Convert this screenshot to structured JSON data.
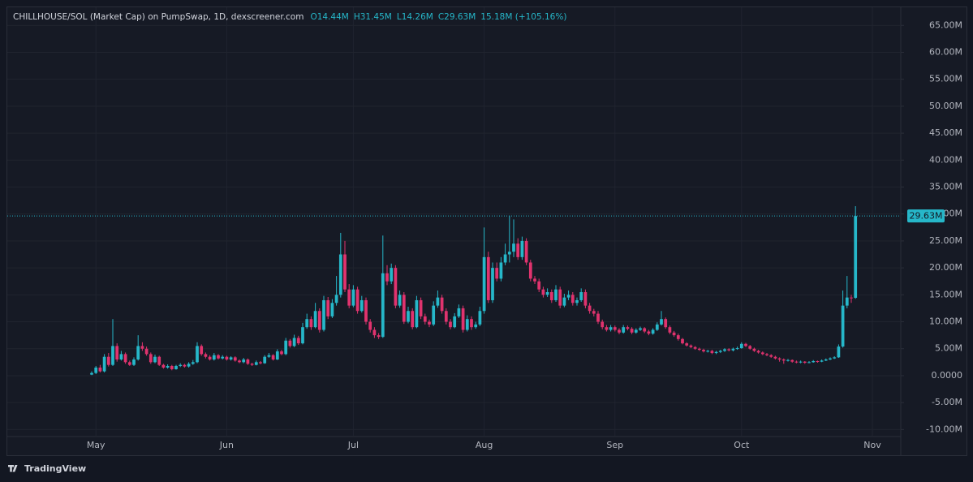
{
  "chart_data": {
    "type": "candlestick",
    "title": "CHILLHOUSE/SOL (Market Cap) on PumpSwap, 1D, dexscreener.com",
    "legend_items": [
      "O14.44M",
      "H31.45M",
      "L14.26M",
      "C29.63M",
      "15.18M (+105.16%)"
    ],
    "last_value_label": "29.63M",
    "footer": "TradingView",
    "up_color": "#26b7c9",
    "down_color": "#e0336e",
    "grid": true,
    "ylim": [
      -11.3,
      67.9
    ],
    "yticks": [
      {
        "value": -10,
        "label": "-10.00M"
      },
      {
        "value": -5,
        "label": "-5.00M"
      },
      {
        "value": 0,
        "label": "0.0000"
      },
      {
        "value": 5,
        "label": "5.00M"
      },
      {
        "value": 10,
        "label": "10.00M"
      },
      {
        "value": 15,
        "label": "15.00M"
      },
      {
        "value": 20,
        "label": "20.00M"
      },
      {
        "value": 25,
        "label": "25.00M"
      },
      {
        "value": 30,
        "label": "30.00M"
      },
      {
        "value": 35,
        "label": "35.00M"
      },
      {
        "value": 40,
        "label": "40.00M"
      },
      {
        "value": 45,
        "label": "45.00M"
      },
      {
        "value": 50,
        "label": "50.00M"
      },
      {
        "value": 55,
        "label": "55.00M"
      },
      {
        "value": 60,
        "label": "60.00M"
      },
      {
        "value": 65,
        "label": "65.00M"
      }
    ],
    "categories": [
      null,
      "May",
      null,
      null,
      null,
      null,
      null,
      null,
      null,
      null,
      null,
      null,
      null,
      null,
      null,
      null,
      null,
      null,
      null,
      null,
      null,
      null,
      null,
      null,
      null,
      null,
      null,
      null,
      null,
      null,
      null,
      null,
      "Jun",
      null,
      null,
      null,
      null,
      null,
      null,
      null,
      null,
      null,
      null,
      null,
      null,
      null,
      null,
      null,
      null,
      null,
      null,
      null,
      null,
      null,
      null,
      null,
      null,
      null,
      null,
      null,
      null,
      null,
      "Jul",
      null,
      null,
      null,
      null,
      null,
      null,
      null,
      null,
      null,
      null,
      null,
      null,
      null,
      null,
      null,
      null,
      null,
      null,
      null,
      null,
      null,
      null,
      null,
      null,
      null,
      null,
      null,
      null,
      null,
      null,
      "Aug",
      null,
      null,
      null,
      null,
      null,
      null,
      null,
      null,
      null,
      null,
      null,
      null,
      null,
      null,
      null,
      null,
      null,
      null,
      null,
      null,
      null,
      null,
      null,
      null,
      null,
      null,
      null,
      null,
      null,
      null,
      "Sep",
      null,
      null,
      null,
      null,
      null,
      null,
      null,
      null,
      null,
      null,
      null,
      null,
      null,
      null,
      null,
      null,
      null,
      null,
      null,
      null,
      null,
      null,
      null,
      null,
      null,
      null,
      null,
      null,
      null,
      "Oct",
      null,
      null,
      null,
      null,
      null,
      null,
      null,
      null,
      null,
      null,
      null,
      null,
      null,
      null,
      null,
      null,
      null,
      null,
      null,
      null,
      null,
      null,
      null,
      null,
      null,
      null,
      null,
      null,
      null,
      null,
      "Nov"
    ],
    "ohlc": [
      [
        0.2,
        0.8,
        0.1,
        0.5
      ],
      [
        0.5,
        1.8,
        0.3,
        1.5
      ],
      [
        1.5,
        2.0,
        0.6,
        0.8
      ],
      [
        0.8,
        4.0,
        0.6,
        3.5
      ],
      [
        3.5,
        4.2,
        1.7,
        2.0
      ],
      [
        2.0,
        10.5,
        1.8,
        5.5
      ],
      [
        5.5,
        6.0,
        2.6,
        3.0
      ],
      [
        3.0,
        4.6,
        2.8,
        4.0
      ],
      [
        4.0,
        4.3,
        2.2,
        2.5
      ],
      [
        2.5,
        2.8,
        1.8,
        2.0
      ],
      [
        2.0,
        3.4,
        1.8,
        3.0
      ],
      [
        3.0,
        7.5,
        2.8,
        5.5
      ],
      [
        5.5,
        6.2,
        4.6,
        5.0
      ],
      [
        5.0,
        5.4,
        3.7,
        4.0
      ],
      [
        4.0,
        4.3,
        2.2,
        2.5
      ],
      [
        2.5,
        3.9,
        2.3,
        3.5
      ],
      [
        3.5,
        3.7,
        1.8,
        2.0
      ],
      [
        2.0,
        2.2,
        1.3,
        1.5
      ],
      [
        1.5,
        2.1,
        1.3,
        1.8
      ],
      [
        1.8,
        2.0,
        1.0,
        1.2
      ],
      [
        1.2,
        2.0,
        1.1,
        1.8
      ],
      [
        1.8,
        2.3,
        1.6,
        2.0
      ],
      [
        2.0,
        2.2,
        1.5,
        1.7
      ],
      [
        1.7,
        2.5,
        1.5,
        2.2
      ],
      [
        2.2,
        2.9,
        2.0,
        2.5
      ],
      [
        2.5,
        6.2,
        2.3,
        5.5
      ],
      [
        5.5,
        5.8,
        3.7,
        4.0
      ],
      [
        4.0,
        4.3,
        3.2,
        3.5
      ],
      [
        3.5,
        3.8,
        2.8,
        3.0
      ],
      [
        3.0,
        4.2,
        2.8,
        3.8
      ],
      [
        3.8,
        4.0,
        3.0,
        3.2
      ],
      [
        3.2,
        3.8,
        3.0,
        3.5
      ],
      [
        3.5,
        3.7,
        2.8,
        3.0
      ],
      [
        3.0,
        3.6,
        2.8,
        3.4
      ],
      [
        3.4,
        3.6,
        2.6,
        2.8
      ],
      [
        2.8,
        3.0,
        2.3,
        2.5
      ],
      [
        2.5,
        3.3,
        2.3,
        3.0
      ],
      [
        3.0,
        3.2,
        2.0,
        2.2
      ],
      [
        2.2,
        2.4,
        1.8,
        2.0
      ],
      [
        2.0,
        2.8,
        1.9,
        2.5
      ],
      [
        2.5,
        2.7,
        2.1,
        2.3
      ],
      [
        2.3,
        3.8,
        2.2,
        3.5
      ],
      [
        3.5,
        4.2,
        3.3,
        3.8
      ],
      [
        3.8,
        4.0,
        2.8,
        3.0
      ],
      [
        3.0,
        4.9,
        2.9,
        4.5
      ],
      [
        4.5,
        4.8,
        3.8,
        4.0
      ],
      [
        4.0,
        7.0,
        3.8,
        6.5
      ],
      [
        6.5,
        6.8,
        5.2,
        5.5
      ],
      [
        5.5,
        7.6,
        5.3,
        7.0
      ],
      [
        7.0,
        7.4,
        5.7,
        6.0
      ],
      [
        6.0,
        9.8,
        5.8,
        9.0
      ],
      [
        9.0,
        11.5,
        8.7,
        10.5
      ],
      [
        10.5,
        11.0,
        8.5,
        9.0
      ],
      [
        9.0,
        13.5,
        8.8,
        12.0
      ],
      [
        12.0,
        12.5,
        8.0,
        8.5
      ],
      [
        8.5,
        14.8,
        8.2,
        14.0
      ],
      [
        14.0,
        14.6,
        10.5,
        11.0
      ],
      [
        11.0,
        14.2,
        10.7,
        13.5
      ],
      [
        13.5,
        18.5,
        13.0,
        15.0
      ],
      [
        15.0,
        26.5,
        14.5,
        22.5
      ],
      [
        22.5,
        25.0,
        15.5,
        16.0
      ],
      [
        16.0,
        17.0,
        12.5,
        13.0
      ],
      [
        13.0,
        16.8,
        12.7,
        16.0
      ],
      [
        16.0,
        16.5,
        11.5,
        12.0
      ],
      [
        12.0,
        14.8,
        11.7,
        14.0
      ],
      [
        14.0,
        14.5,
        9.5,
        10.0
      ],
      [
        10.0,
        10.5,
        8.0,
        8.5
      ],
      [
        8.5,
        9.0,
        7.0,
        7.5
      ],
      [
        7.5,
        7.9,
        6.8,
        7.2
      ],
      [
        7.2,
        26.0,
        7.0,
        19.0
      ],
      [
        19.0,
        20.5,
        16.8,
        17.5
      ],
      [
        17.5,
        20.8,
        17.0,
        20.0
      ],
      [
        20.0,
        20.5,
        12.5,
        13.0
      ],
      [
        13.0,
        15.8,
        12.6,
        15.0
      ],
      [
        15.0,
        15.5,
        9.6,
        10.0
      ],
      [
        10.0,
        12.8,
        9.7,
        12.0
      ],
      [
        12.0,
        12.5,
        8.6,
        9.0
      ],
      [
        9.0,
        14.8,
        8.8,
        14.0
      ],
      [
        14.0,
        14.5,
        10.5,
        11.0
      ],
      [
        11.0,
        11.5,
        9.5,
        10.0
      ],
      [
        10.0,
        10.4,
        9.0,
        9.5
      ],
      [
        9.5,
        13.8,
        9.2,
        13.0
      ],
      [
        13.0,
        15.8,
        12.6,
        14.5
      ],
      [
        14.5,
        15.0,
        11.5,
        12.0
      ],
      [
        12.0,
        12.5,
        9.5,
        10.0
      ],
      [
        10.0,
        10.5,
        8.6,
        9.0
      ],
      [
        9.0,
        11.6,
        8.8,
        11.0
      ],
      [
        11.0,
        13.2,
        10.7,
        12.5
      ],
      [
        12.5,
        13.0,
        8.0,
        8.5
      ],
      [
        8.5,
        11.2,
        8.2,
        10.5
      ],
      [
        10.5,
        11.0,
        8.5,
        9.0
      ],
      [
        9.0,
        10.0,
        8.7,
        9.5
      ],
      [
        9.5,
        12.8,
        9.2,
        12.0
      ],
      [
        12.0,
        27.5,
        11.5,
        22.0
      ],
      [
        22.0,
        23.0,
        13.5,
        14.0
      ],
      [
        14.0,
        21.0,
        13.5,
        20.0
      ],
      [
        20.0,
        21.0,
        17.5,
        18.0
      ],
      [
        18.0,
        22.0,
        17.5,
        21.0
      ],
      [
        21.0,
        24.5,
        20.5,
        22.5
      ],
      [
        22.5,
        29.7,
        21.0,
        23.0
      ],
      [
        23.0,
        29.0,
        22.0,
        24.5
      ],
      [
        24.5,
        25.5,
        21.5,
        22.0
      ],
      [
        22.0,
        25.8,
        21.5,
        25.0
      ],
      [
        25.0,
        25.5,
        20.5,
        21.0
      ],
      [
        21.0,
        21.5,
        17.5,
        18.0
      ],
      [
        18.0,
        18.5,
        17.0,
        17.5
      ],
      [
        17.5,
        18.0,
        15.5,
        16.0
      ],
      [
        16.0,
        16.5,
        14.5,
        15.0
      ],
      [
        15.0,
        16.2,
        14.6,
        15.5
      ],
      [
        15.5,
        16.0,
        13.5,
        14.0
      ],
      [
        14.0,
        16.8,
        13.7,
        16.0
      ],
      [
        16.0,
        16.5,
        12.5,
        13.0
      ],
      [
        13.0,
        15.2,
        12.7,
        14.5
      ],
      [
        14.5,
        15.8,
        14.0,
        15.0
      ],
      [
        15.0,
        15.5,
        13.0,
        13.5
      ],
      [
        13.5,
        14.5,
        13.0,
        14.0
      ],
      [
        14.0,
        16.2,
        13.7,
        15.5
      ],
      [
        15.5,
        16.0,
        12.5,
        13.0
      ],
      [
        13.0,
        13.5,
        11.5,
        12.0
      ],
      [
        12.0,
        12.4,
        11.0,
        11.5
      ],
      [
        11.5,
        12.0,
        9.6,
        10.0
      ],
      [
        10.0,
        10.4,
        8.6,
        9.0
      ],
      [
        9.0,
        9.4,
        8.2,
        8.5
      ],
      [
        8.5,
        9.4,
        8.2,
        9.0
      ],
      [
        9.0,
        9.3,
        8.2,
        8.5
      ],
      [
        8.5,
        8.8,
        7.7,
        8.0
      ],
      [
        8.0,
        9.4,
        7.8,
        9.0
      ],
      [
        9.0,
        9.3,
        8.4,
        8.7
      ],
      [
        8.7,
        9.0,
        7.7,
        8.0
      ],
      [
        8.0,
        8.8,
        7.8,
        8.5
      ],
      [
        8.5,
        9.1,
        8.3,
        8.8
      ],
      [
        8.8,
        9.0,
        7.9,
        8.2
      ],
      [
        8.2,
        8.5,
        7.5,
        7.8
      ],
      [
        7.8,
        8.8,
        7.6,
        8.5
      ],
      [
        8.5,
        9.9,
        8.3,
        9.5
      ],
      [
        9.5,
        12.0,
        9.3,
        10.5
      ],
      [
        10.5,
        10.8,
        8.7,
        9.0
      ],
      [
        9.0,
        9.3,
        7.7,
        8.0
      ],
      [
        8.0,
        8.3,
        7.2,
        7.5
      ],
      [
        7.5,
        7.8,
        6.5,
        6.8
      ],
      [
        6.8,
        7.0,
        5.8,
        6.0
      ],
      [
        6.0,
        6.2,
        5.4,
        5.6
      ],
      [
        5.6,
        5.8,
        5.1,
        5.3
      ],
      [
        5.3,
        5.5,
        4.8,
        5.0
      ],
      [
        5.0,
        5.2,
        4.6,
        4.8
      ],
      [
        4.8,
        5.0,
        4.3,
        4.5
      ],
      [
        4.5,
        4.8,
        4.3,
        4.6
      ],
      [
        4.6,
        4.8,
        4.0,
        4.2
      ],
      [
        4.2,
        4.6,
        4.0,
        4.4
      ],
      [
        4.4,
        4.8,
        4.2,
        4.6
      ],
      [
        4.6,
        5.1,
        4.4,
        4.9
      ],
      [
        4.9,
        5.1,
        4.5,
        4.7
      ],
      [
        4.7,
        5.2,
        4.5,
        5.0
      ],
      [
        5.0,
        5.4,
        4.8,
        5.1
      ],
      [
        5.1,
        6.2,
        5.0,
        5.9
      ],
      [
        5.9,
        6.1,
        5.3,
        5.5
      ],
      [
        5.5,
        5.7,
        4.8,
        5.0
      ],
      [
        5.0,
        5.2,
        4.4,
        4.6
      ],
      [
        4.6,
        4.8,
        4.1,
        4.3
      ],
      [
        4.3,
        4.5,
        3.8,
        4.0
      ],
      [
        4.0,
        4.2,
        3.6,
        3.8
      ],
      [
        3.8,
        4.0,
        3.3,
        3.5
      ],
      [
        3.5,
        3.7,
        3.0,
        3.2
      ],
      [
        3.2,
        3.4,
        2.6,
        3.0
      ],
      [
        3.0,
        3.2,
        2.2,
        2.8
      ],
      [
        2.8,
        3.1,
        2.6,
        2.9
      ],
      [
        2.9,
        3.0,
        2.4,
        2.6
      ],
      [
        2.6,
        2.8,
        2.3,
        2.5
      ],
      [
        2.5,
        2.8,
        2.3,
        2.6
      ],
      [
        2.6,
        2.7,
        2.2,
        2.4
      ],
      [
        2.4,
        2.7,
        2.3,
        2.5
      ],
      [
        2.5,
        2.9,
        2.4,
        2.7
      ],
      [
        2.7,
        2.8,
        2.4,
        2.6
      ],
      [
        2.6,
        3.0,
        2.5,
        2.8
      ],
      [
        2.8,
        3.2,
        2.7,
        3.0
      ],
      [
        3.0,
        3.4,
        2.9,
        3.2
      ],
      [
        3.2,
        3.6,
        3.1,
        3.4
      ],
      [
        3.4,
        5.8,
        3.3,
        5.4
      ],
      [
        5.4,
        15.8,
        5.2,
        13.0
      ],
      [
        13.0,
        18.5,
        12.5,
        14.5
      ],
      [
        14.5,
        15.0,
        13.5,
        14.44
      ],
      [
        14.44,
        31.45,
        14.26,
        29.63
      ],
      null,
      null,
      null,
      null
    ]
  }
}
